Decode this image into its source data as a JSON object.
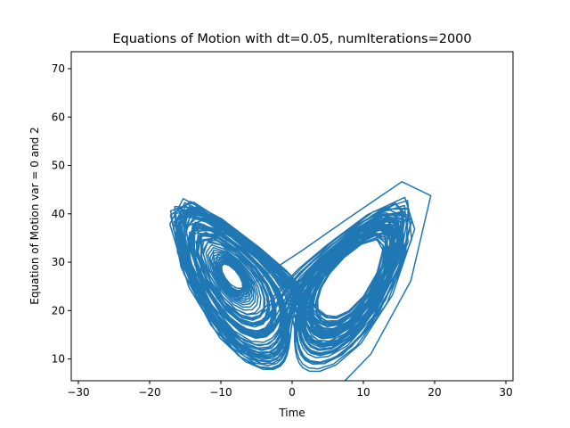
{
  "chart_data": {
    "type": "line",
    "title": "Equations of Motion with dt=0.05, numIterations=2000",
    "xlabel": "Time",
    "ylabel": "Equation of Motion var = 0 and 2",
    "xlim": [
      -31,
      31
    ],
    "ylim": [
      5.5,
      73.5
    ],
    "xticks": [
      -30,
      -20,
      -10,
      0,
      10,
      20,
      30
    ],
    "yticks": [
      10,
      20,
      30,
      40,
      50,
      60,
      70
    ],
    "grid": false,
    "legend": "none",
    "series": [
      {
        "color": "#1f77b4",
        "model": "lorenz",
        "sigma": 10,
        "rho": 28,
        "beta": 2.6667,
        "dt": 0.05,
        "num_iterations": 2000,
        "initial": [
          1.0,
          1.0,
          1.0
        ],
        "x_variable": 0,
        "y_variable": 2
      }
    ]
  },
  "colors": {
    "line": "#1f77b4",
    "axes": "#000000",
    "background": "#ffffff"
  }
}
